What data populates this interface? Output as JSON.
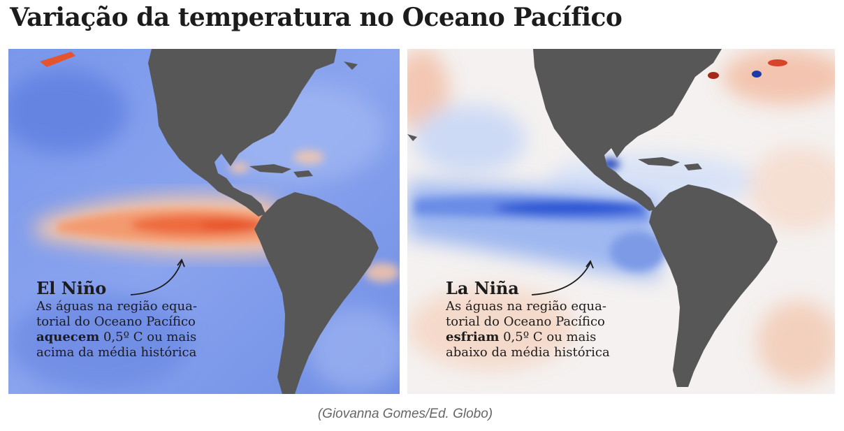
{
  "title": "Variação da temperatura no Oceano Pacífico",
  "panels": {
    "el_nino": {
      "name": "El Niño",
      "line1": "As águas na região equa-",
      "line2": "torial do Oceano Pacífico",
      "bold_word": "aquecem",
      "line3_rest": " 0,5º C ou mais",
      "line4": "acima da média histórica"
    },
    "la_nina": {
      "name": "La Niña",
      "line1": "As águas na região equa-",
      "line2": "torial do Oceano Pacífico",
      "bold_word": "esfriam",
      "line3_rest": " 0,5º C ou mais",
      "line4": "abaixo da média histórica"
    }
  },
  "credit": "(Giovanna Gomes/Ed. Globo)",
  "colors": {
    "land": "#575757",
    "warm": "#f07a4e",
    "cool": "#6f8fe6",
    "neutral": "#f6f4f2"
  }
}
